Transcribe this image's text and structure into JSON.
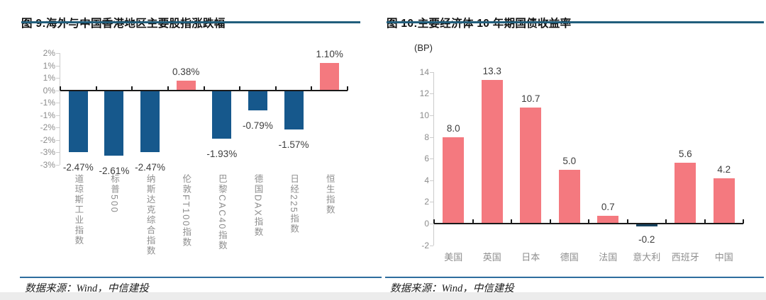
{
  "colors": {
    "page_bg": "#ffffff",
    "title_rule": "#215E7C",
    "footer_rule": "#2E6D9E",
    "bottom_strip": "#ececec",
    "axis": "#1a1a1a",
    "tick_text": "#8c8c8c",
    "category_text": "#8e8e8e",
    "data_label_text": "#3d3d3d"
  },
  "chart_data": [
    {
      "type": "bar",
      "title": "图 9:海外与中国香港地区主要股指涨跌幅",
      "source": "数据来源：Wind，中信建投",
      "categories": [
        "道琼斯工业指数",
        "标普500",
        "纳斯达克综合指数",
        "伦敦FT100指数",
        "巴黎CAC40指数",
        "德国DAX指数",
        "日经225指数",
        "恒生指数"
      ],
      "values": [
        -2.47,
        -2.61,
        -2.47,
        0.38,
        -1.93,
        -0.79,
        -1.57,
        1.1
      ],
      "data_labels": [
        "-2.47%",
        "-2.61%",
        "-2.47%",
        "0.38%",
        "-1.93%",
        "-0.79%",
        "-1.57%",
        "1.10%"
      ],
      "ylim": [
        -3.0,
        1.5
      ],
      "yticks": [
        1.5,
        1.0,
        0.5,
        0,
        -0.5,
        -1.0,
        -1.5,
        -2.0,
        -2.5,
        -3.0
      ],
      "ytick_labels": [
        "2%",
        "1%",
        "1%",
        "0%",
        "-1%",
        "-1%",
        "-2%",
        "-2%",
        "-3%",
        "-3%"
      ],
      "bar_color_positive": "#F4797F",
      "bar_color_negative": "#16588C",
      "category_orientation": "vertical",
      "grid": false,
      "legend": "none"
    },
    {
      "type": "bar",
      "title": "图 10:主要经济体 10 年期国债收益率",
      "unit_label": "(BP)",
      "source": "数据来源：Wind，中信建投",
      "categories": [
        "美国",
        "英国",
        "日本",
        "德国",
        "法国",
        "意大利",
        "西班牙",
        "中国"
      ],
      "values": [
        8.0,
        13.3,
        10.7,
        5.0,
        0.7,
        -0.2,
        5.6,
        4.2
      ],
      "data_labels": [
        "8.0",
        "13.3",
        "10.7",
        "5.0",
        "0.7",
        "-0.2",
        "5.6",
        "4.2"
      ],
      "ylim": [
        -2,
        14
      ],
      "yticks": [
        14,
        12,
        10,
        8,
        6,
        4,
        2,
        0,
        -2
      ],
      "bar_color_positive": "#F4797F",
      "bar_color_negative": "#17425F",
      "category_orientation": "horizontal",
      "grid": false,
      "legend": "none"
    }
  ]
}
